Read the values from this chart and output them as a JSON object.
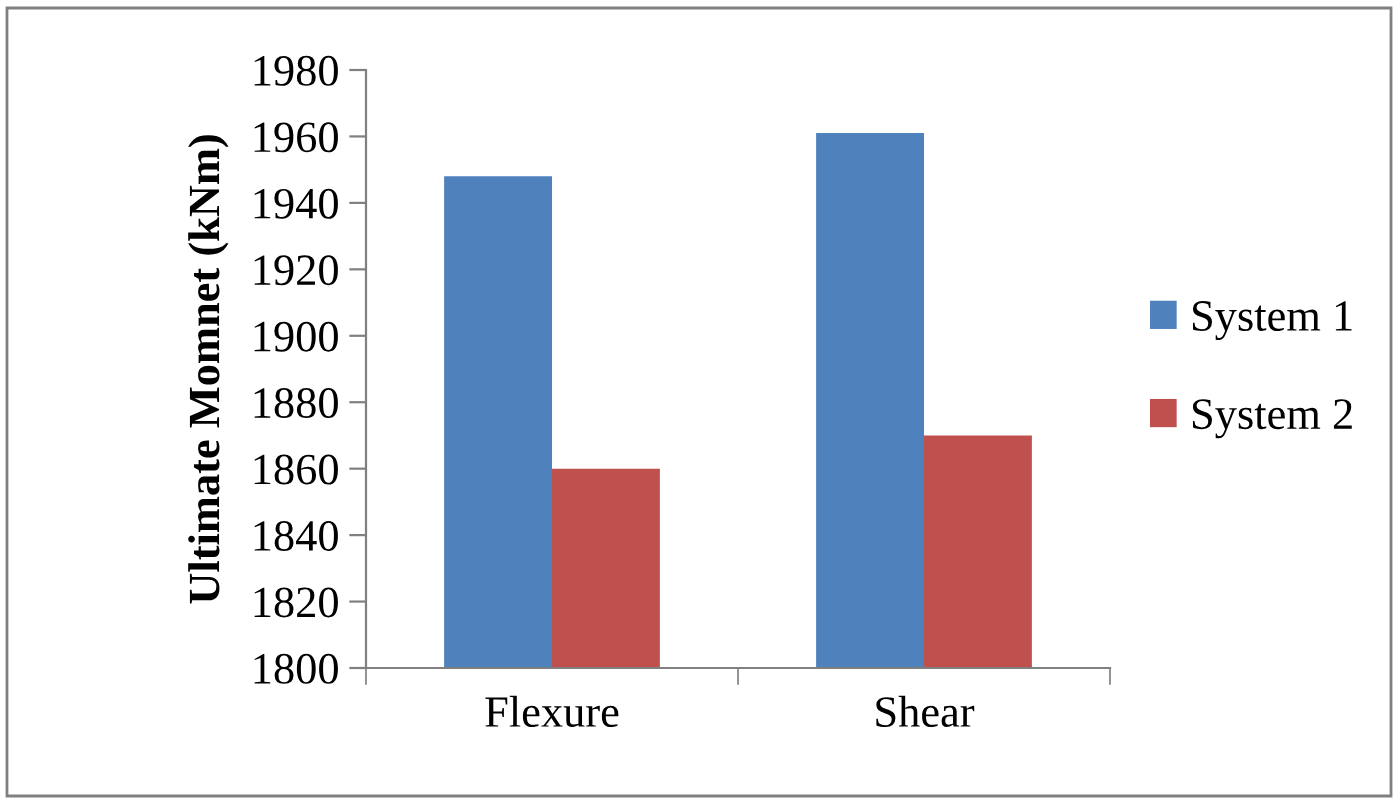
{
  "chart_data": {
    "type": "bar",
    "ylabel": "Ultimate Momnet (kNm)",
    "categories": [
      "Flexure",
      "Shear"
    ],
    "series": [
      {
        "name": "System 1",
        "color": "#4f81bd",
        "values": [
          1948,
          1961
        ]
      },
      {
        "name": "System 2",
        "color": "#c0504d",
        "values": [
          1860,
          1870
        ]
      }
    ],
    "ylim": [
      1800,
      1980
    ],
    "yticks": [
      1800,
      1820,
      1840,
      1860,
      1880,
      1900,
      1920,
      1940,
      1960,
      1980
    ],
    "grid": false,
    "legend": "right"
  }
}
